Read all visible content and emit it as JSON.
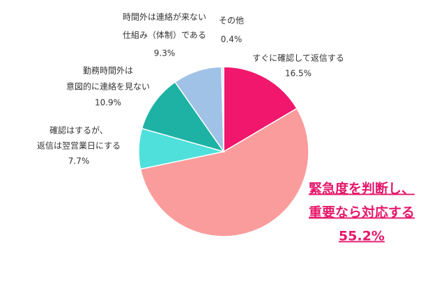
{
  "chart_data": {
    "type": "pie",
    "categories": [
      [
        "すぐに確認して返信する"
      ],
      [
        "緊急度を判断し、",
        "重要なら対応する"
      ],
      [
        "確認はするが、",
        "返信は翌営業日にする"
      ],
      [
        "勤務時間外は",
        "意図的に連絡を見ない"
      ],
      [
        "時間外は連絡が来ない",
        "仕組み（体制）である"
      ],
      [
        "その他"
      ]
    ],
    "values": [
      16.5,
      55.2,
      7.7,
      10.9,
      9.3,
      0.4
    ],
    "value_labels": [
      "16.5%",
      "55.2%",
      "7.7%",
      "10.9%",
      "9.3%",
      "0.4%"
    ],
    "colors": [
      "#f0176c",
      "#fa9c9c",
      "#4fe0dc",
      "#1db2a4",
      "#a0c2e6",
      "#dfe6ee"
    ]
  }
}
